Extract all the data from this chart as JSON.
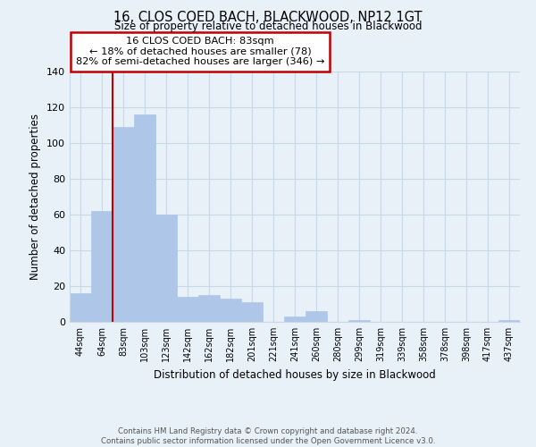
{
  "title": "16, CLOS COED BACH, BLACKWOOD, NP12 1GT",
  "subtitle": "Size of property relative to detached houses in Blackwood",
  "xlabel": "Distribution of detached houses by size in Blackwood",
  "ylabel": "Number of detached properties",
  "bar_labels": [
    "44sqm",
    "64sqm",
    "83sqm",
    "103sqm",
    "123sqm",
    "142sqm",
    "162sqm",
    "182sqm",
    "201sqm",
    "221sqm",
    "241sqm",
    "260sqm",
    "280sqm",
    "299sqm",
    "319sqm",
    "339sqm",
    "358sqm",
    "378sqm",
    "398sqm",
    "417sqm",
    "437sqm"
  ],
  "bar_values": [
    16,
    62,
    109,
    116,
    60,
    14,
    15,
    13,
    11,
    0,
    3,
    6,
    0,
    1,
    0,
    0,
    0,
    0,
    0,
    0,
    1
  ],
  "bar_color": "#aec6e8",
  "highlight_color": "#c00000",
  "vline_index": 2,
  "ylim": [
    0,
    140
  ],
  "yticks": [
    0,
    20,
    40,
    60,
    80,
    100,
    120,
    140
  ],
  "annotation_title": "16 CLOS COED BACH: 83sqm",
  "annotation_line1": "← 18% of detached houses are smaller (78)",
  "annotation_line2": "82% of semi-detached houses are larger (346) →",
  "annotation_box_color": "#ffffff",
  "annotation_box_edge": "#c00000",
  "footer_line1": "Contains HM Land Registry data © Crown copyright and database right 2024.",
  "footer_line2": "Contains public sector information licensed under the Open Government Licence v3.0.",
  "grid_color": "#c8d8e8",
  "background_color": "#e8f0f8"
}
